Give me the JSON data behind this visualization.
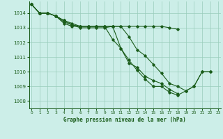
{
  "title": "Graphe pression niveau de la mer (hPa)",
  "background_color": "#cceee8",
  "grid_color": "#99ccbb",
  "line_color": "#1a5c1a",
  "ylim": [
    1007.5,
    1014.8
  ],
  "xlim": [
    -0.3,
    23.3
  ],
  "yticks": [
    1008,
    1009,
    1010,
    1011,
    1012,
    1013,
    1014
  ],
  "xticks": [
    0,
    1,
    2,
    3,
    4,
    5,
    6,
    7,
    8,
    9,
    10,
    11,
    12,
    13,
    14,
    15,
    16,
    17,
    18,
    19,
    20,
    21,
    22,
    23
  ],
  "series": [
    [
      1014.6,
      1014.0,
      1014.0,
      1013.8,
      1013.5,
      1013.2,
      1013.0,
      1013.0,
      1013.0,
      1013.0,
      1013.1,
      1013.1,
      1012.4,
      1011.5,
      1011.1,
      1010.5,
      1009.9,
      1009.2,
      1009.0,
      1008.7,
      1009.0,
      1010.0,
      1010.0,
      null
    ],
    [
      1014.6,
      1014.0,
      1014.0,
      1013.8,
      1013.5,
      1013.3,
      1013.1,
      1013.1,
      1013.1,
      1013.1,
      1013.1,
      1011.6,
      1010.8,
      1010.1,
      1009.5,
      1009.0,
      1009.0,
      1008.6,
      1008.4,
      1008.7,
      1009.0,
      1010.0,
      1010.0,
      null
    ],
    [
      1014.6,
      1014.0,
      1014.0,
      1013.8,
      1013.4,
      1013.2,
      1013.1,
      1013.1,
      1013.1,
      1013.1,
      1012.2,
      1011.6,
      1010.6,
      1010.3,
      1009.7,
      1009.4,
      1009.2,
      1008.8,
      1008.5,
      null,
      null,
      null,
      null,
      null
    ],
    [
      1014.6,
      1014.0,
      1014.0,
      1013.8,
      1013.3,
      1013.1,
      1013.1,
      1013.1,
      1013.1,
      1013.1,
      1013.1,
      1013.1,
      1013.1,
      1013.1,
      1013.1,
      1013.1,
      1013.1,
      1013.0,
      1012.9,
      null,
      null,
      null,
      null,
      null
    ]
  ]
}
